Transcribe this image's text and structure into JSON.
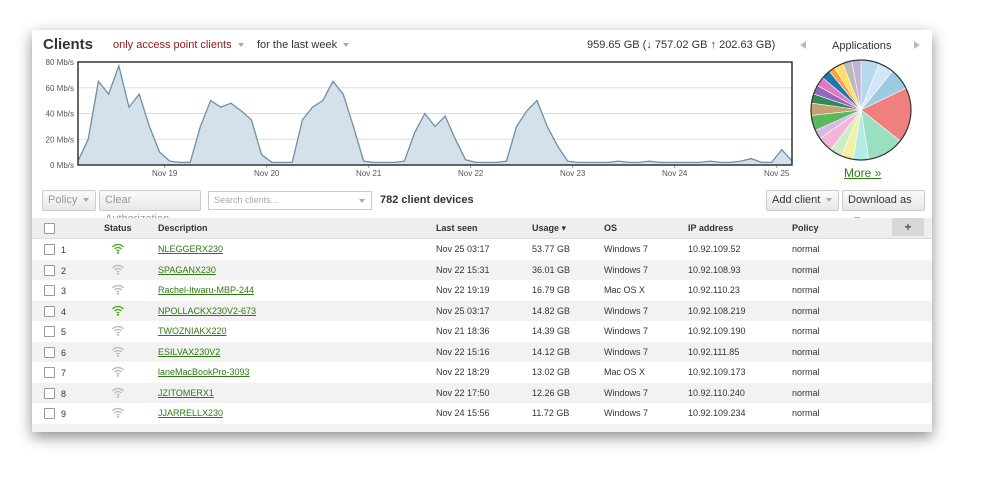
{
  "header": {
    "title": "Clients",
    "filter_clients": "only access point clients",
    "filter_time": "for the last week",
    "totals": "959.65 GB (↓ 757.02 GB ↑ 202.63 GB)",
    "applications": "Applications",
    "more": "More »"
  },
  "traffic": {
    "type": "area",
    "color": "#6f8fa6",
    "fill": "#d5e1ea",
    "xlim": [
      0,
      7
    ],
    "ylim": [
      0,
      80
    ],
    "yticks": [
      {
        "value": 0,
        "label": "0 Mb/s"
      },
      {
        "value": 20,
        "label": "20 Mb/s"
      },
      {
        "value": 40,
        "label": "40 Mb/s"
      },
      {
        "value": 60,
        "label": "60 Mb/s"
      },
      {
        "value": 80,
        "label": "80 Mb/s"
      }
    ],
    "xticks": [
      {
        "value": 0.85,
        "label": "Nov 19"
      },
      {
        "value": 1.85,
        "label": "Nov 20"
      },
      {
        "value": 2.85,
        "label": "Nov 21"
      },
      {
        "value": 3.85,
        "label": "Nov 22"
      },
      {
        "value": 4.85,
        "label": "Nov 23"
      },
      {
        "value": 5.85,
        "label": "Nov 24"
      },
      {
        "value": 6.85,
        "label": "Nov 25"
      }
    ],
    "x": [
      0,
      0.1,
      0.2,
      0.3,
      0.4,
      0.5,
      0.6,
      0.7,
      0.8,
      0.9,
      1,
      1.1,
      1.2,
      1.3,
      1.4,
      1.5,
      1.6,
      1.7,
      1.8,
      1.9,
      2,
      2.1,
      2.2,
      2.3,
      2.4,
      2.5,
      2.6,
      2.7,
      2.8,
      2.9,
      3,
      3.1,
      3.2,
      3.3,
      3.4,
      3.5,
      3.6,
      3.7,
      3.8,
      3.9,
      4,
      4.1,
      4.2,
      4.3,
      4.4,
      4.5,
      4.6,
      4.7,
      4.8,
      4.9,
      5,
      5.1,
      5.2,
      5.3,
      5.4,
      5.5,
      5.6,
      5.7,
      5.8,
      5.9,
      6,
      6.1,
      6.2,
      6.3,
      6.4,
      6.5,
      6.6,
      6.7,
      6.8,
      6.9,
      7
    ],
    "values": [
      3,
      20,
      65,
      55,
      77,
      45,
      55,
      30,
      10,
      3,
      2,
      2,
      30,
      50,
      45,
      48,
      42,
      35,
      8,
      2,
      2,
      2,
      35,
      45,
      50,
      65,
      55,
      30,
      3,
      2,
      2,
      2,
      3,
      25,
      40,
      30,
      38,
      20,
      4,
      2,
      2,
      2,
      3,
      30,
      42,
      50,
      30,
      15,
      3,
      2,
      2,
      2,
      2,
      3,
      2,
      2,
      3,
      2,
      2,
      2,
      2,
      2,
      3,
      2,
      2,
      3,
      5,
      2,
      2,
      12,
      3
    ]
  },
  "pie": {
    "type": "pie",
    "values": [
      6,
      5,
      7,
      18,
      12,
      5,
      4,
      4,
      5,
      3,
      5,
      4,
      3,
      3,
      3,
      3,
      2,
      3,
      3,
      3
    ],
    "colors": [
      "#b8d8ef",
      "#d3e6f7",
      "#9ecae1",
      "#f08080",
      "#98e0c0",
      "#b3ece4",
      "#f5f0a0",
      "#cdeec5",
      "#f4b6d8",
      "#d8b8e8",
      "#5cb85c",
      "#c8a070",
      "#2e8b57",
      "#9467bd",
      "#e377c2",
      "#1f77b4",
      "#ff9f40",
      "#ffe066",
      "#bbbbbb",
      "#c5b0d5"
    ]
  },
  "toolbar": {
    "policy": "Policy",
    "clear": "Clear Authorization",
    "search": "Search clients...",
    "count": "782 client devices",
    "add_client": "Add client",
    "download": "Download as"
  },
  "table": {
    "columns": [
      "Status",
      "Description",
      "Last seen",
      "Usage ▾",
      "OS",
      "IP address",
      "Policy"
    ],
    "add_column": "+",
    "rows": [
      {
        "n": "1",
        "status_color": "#4caf1e",
        "description": "NLEGGERX230",
        "last_seen": "Nov 25 03:17",
        "usage": "53.77 GB",
        "os": "Windows 7",
        "ip": "10.92.109.52",
        "policy": "normal"
      },
      {
        "n": "2",
        "status_color": "#bbbbbb",
        "description": "SPAGANX230",
        "last_seen": "Nov 22 15:31",
        "usage": "36.01 GB",
        "os": "Windows 7",
        "ip": "10.92.108.93",
        "policy": "normal"
      },
      {
        "n": "3",
        "status_color": "#bbbbbb",
        "description": "Rachel-Itwaru-MBP-244",
        "last_seen": "Nov 22 19:19",
        "usage": "16.79 GB",
        "os": "Mac OS X",
        "ip": "10.92.110.23",
        "policy": "normal"
      },
      {
        "n": "4",
        "status_color": "#4caf1e",
        "description": "NPOLLACKX230V2-673",
        "last_seen": "Nov 25 03:17",
        "usage": "14.82 GB",
        "os": "Windows 7",
        "ip": "10.92.108.219",
        "policy": "normal"
      },
      {
        "n": "5",
        "status_color": "#bbbbbb",
        "description": "TWOZNIAKX220",
        "last_seen": "Nov 21 18:36",
        "usage": "14.39 GB",
        "os": "Windows 7",
        "ip": "10.92.109.190",
        "policy": "normal"
      },
      {
        "n": "6",
        "status_color": "#bbbbbb",
        "description": "ESILVAX230V2",
        "last_seen": "Nov 22 15:16",
        "usage": "14.12 GB",
        "os": "Windows 7",
        "ip": "10.92.111.85",
        "policy": "normal"
      },
      {
        "n": "7",
        "status_color": "#bbbbbb",
        "description": "laneMacBookPro-3093",
        "last_seen": "Nov 22 18:29",
        "usage": "13.02 GB",
        "os": "Mac OS X",
        "ip": "10.92.109.173",
        "policy": "normal"
      },
      {
        "n": "8",
        "status_color": "#bbbbbb",
        "description": "JZITOMERX1",
        "last_seen": "Nov 22 17:50",
        "usage": "12.26 GB",
        "os": "Windows 7",
        "ip": "10.92.110.240",
        "policy": "normal"
      },
      {
        "n": "9",
        "status_color": "#bbbbbb",
        "description": "JJARRELLX230",
        "last_seen": "Nov 24 15:56",
        "usage": "11.72 GB",
        "os": "Windows 7",
        "ip": "10.92.109.234",
        "policy": "normal"
      }
    ]
  }
}
